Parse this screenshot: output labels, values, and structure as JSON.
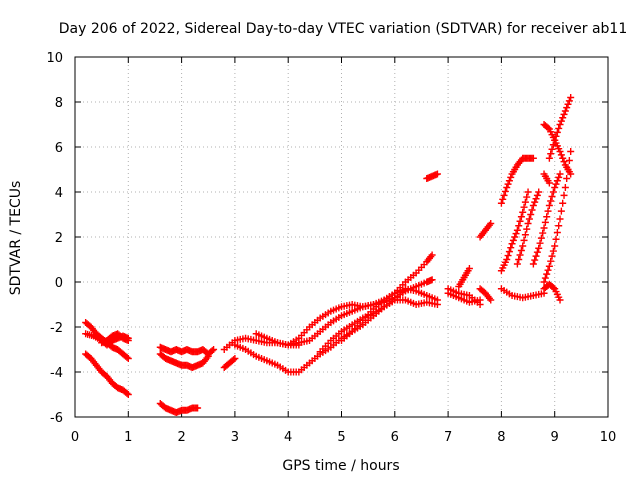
{
  "chart_data": {
    "type": "scatter",
    "title": "Day 206 of 2022, Sidereal Day-to-day VTEC variation (SDTVAR) for receiver ab11",
    "xlabel": "GPS time / hours",
    "ylabel": "SDTVAR / TECUs",
    "xlim": [
      0,
      10
    ],
    "ylim": [
      -6,
      10
    ],
    "xticks": [
      0,
      1,
      2,
      3,
      4,
      5,
      6,
      7,
      8,
      9,
      10
    ],
    "yticks": [
      -6,
      -4,
      -2,
      0,
      2,
      4,
      6,
      8,
      10
    ],
    "grid": true,
    "marker": "plus",
    "color": "#ff0000",
    "series": [
      {
        "x": [
          0.2,
          0.3,
          0.4,
          0.5,
          0.6,
          0.7,
          0.8,
          0.9,
          1.0
        ],
        "y": [
          -1.8,
          -2.0,
          -2.3,
          -2.5,
          -2.7,
          -2.9,
          -3.0,
          -3.2,
          -3.4
        ]
      },
      {
        "x": [
          0.2,
          0.35,
          0.5,
          0.6,
          0.7,
          0.8,
          0.9,
          1.0
        ],
        "y": [
          -2.3,
          -2.4,
          -2.6,
          -2.8,
          -2.6,
          -2.5,
          -2.4,
          -2.5
        ]
      },
      {
        "x": [
          0.5,
          0.6,
          0.7,
          0.8,
          0.9,
          1.0
        ],
        "y": [
          -2.7,
          -2.6,
          -2.4,
          -2.3,
          -2.5,
          -2.6
        ]
      },
      {
        "x": [
          0.2,
          0.3,
          0.4,
          0.5,
          0.6,
          0.7,
          0.8,
          0.9,
          1.0
        ],
        "y": [
          -3.2,
          -3.4,
          -3.7,
          -4.0,
          -4.2,
          -4.5,
          -4.7,
          -4.8,
          -5.0
        ]
      },
      {
        "x": [
          1.6,
          1.7,
          1.8,
          1.9,
          2.0,
          2.1,
          2.2,
          2.3
        ],
        "y": [
          -5.4,
          -5.6,
          -5.7,
          -5.8,
          -5.7,
          -5.7,
          -5.6,
          -5.6
        ]
      },
      {
        "x": [
          1.6,
          1.7,
          1.8,
          1.9,
          2.0,
          2.1,
          2.2,
          2.3,
          2.4,
          2.5,
          2.6
        ],
        "y": [
          -2.9,
          -3.0,
          -3.1,
          -3.0,
          -3.1,
          -3.0,
          -3.1,
          -3.1,
          -3.0,
          -3.2,
          -3.0
        ]
      },
      {
        "x": [
          1.6,
          1.7,
          1.8,
          1.9,
          2.0,
          2.1,
          2.2,
          2.3,
          2.4,
          2.5
        ],
        "y": [
          -3.2,
          -3.4,
          -3.5,
          -3.6,
          -3.7,
          -3.7,
          -3.8,
          -3.7,
          -3.6,
          -3.3
        ]
      },
      {
        "x": [
          2.8,
          2.9,
          3.0
        ],
        "y": [
          -3.8,
          -3.6,
          -3.4
        ]
      },
      {
        "x": [
          2.8,
          3.0,
          3.2,
          3.4,
          3.6,
          3.8,
          4.0,
          4.2
        ],
        "y": [
          -3.0,
          -2.6,
          -2.5,
          -2.6,
          -2.7,
          -2.7,
          -2.8,
          -2.8
        ]
      },
      {
        "x": [
          3.0,
          3.2,
          3.4,
          3.6,
          3.8,
          4.0,
          4.2,
          4.4,
          4.6,
          4.8,
          5.0,
          5.2,
          5.4,
          5.6,
          5.8,
          6.0,
          6.2
        ],
        "y": [
          -2.8,
          -3.0,
          -3.3,
          -3.5,
          -3.7,
          -4.0,
          -4.0,
          -3.6,
          -3.2,
          -2.9,
          -2.5,
          -2.2,
          -1.9,
          -1.5,
          -1.1,
          -0.8,
          -0.3
        ]
      },
      {
        "x": [
          3.4,
          3.6,
          3.8,
          4.0,
          4.2,
          4.4,
          4.6,
          4.8,
          5.0,
          5.2,
          5.4,
          5.6,
          5.8,
          6.0,
          6.2,
          6.4,
          6.6,
          6.7
        ],
        "y": [
          -2.3,
          -2.5,
          -2.7,
          -2.8,
          -2.7,
          -2.6,
          -2.2,
          -1.8,
          -1.5,
          -1.3,
          -1.1,
          -1.0,
          -0.8,
          -0.5,
          0.0,
          0.4,
          0.9,
          1.2
        ]
      },
      {
        "x": [
          4.0,
          4.2,
          4.4,
          4.6,
          4.8,
          5.0,
          5.2,
          5.4,
          5.6,
          5.8,
          6.0,
          6.2,
          6.4,
          6.6,
          6.7
        ],
        "y": [
          -2.8,
          -2.5,
          -2.0,
          -1.6,
          -1.3,
          -1.1,
          -1.0,
          -1.1,
          -1.0,
          -0.9,
          -0.7,
          -0.4,
          -0.2,
          0.0,
          0.1
        ]
      },
      {
        "x": [
          4.6,
          4.8,
          5.0,
          5.2,
          5.4,
          5.6,
          5.8,
          6.0,
          6.2,
          6.4,
          6.6,
          6.8
        ],
        "y": [
          -3.1,
          -2.6,
          -2.2,
          -1.9,
          -1.6,
          -1.4,
          -1.1,
          -0.8,
          -0.8,
          -1.0,
          -0.9,
          -1.0
        ]
      },
      {
        "x": [
          5.0,
          5.2,
          5.4,
          5.6,
          5.8,
          6.0,
          6.2,
          6.4,
          6.6,
          6.8
        ],
        "y": [
          -2.6,
          -2.2,
          -1.7,
          -1.2,
          -0.8,
          -0.5,
          -0.3,
          -0.4,
          -0.6,
          -0.8
        ]
      },
      {
        "x": [
          6.6,
          6.7,
          6.8
        ],
        "y": [
          4.6,
          4.7,
          4.8
        ]
      },
      {
        "x": [
          7.0,
          7.2,
          7.4,
          7.6
        ],
        "y": [
          -0.3,
          -0.5,
          -0.6,
          -1.0
        ]
      },
      {
        "x": [
          7.0,
          7.2,
          7.4,
          7.6
        ],
        "y": [
          -0.5,
          -0.7,
          -0.9,
          -0.8
        ]
      },
      {
        "x": [
          7.2,
          7.3,
          7.4
        ],
        "y": [
          -0.2,
          0.2,
          0.6
        ]
      },
      {
        "x": [
          7.6,
          7.7,
          7.8
        ],
        "y": [
          -0.3,
          -0.5,
          -0.8
        ]
      },
      {
        "x": [
          7.6,
          7.7,
          7.8
        ],
        "y": [
          2.0,
          2.3,
          2.6
        ]
      },
      {
        "x": [
          8.0,
          8.2,
          8.4,
          8.6,
          8.8
        ],
        "y": [
          -0.3,
          -0.6,
          -0.7,
          -0.6,
          -0.5
        ]
      },
      {
        "x": [
          8.0,
          8.1,
          8.2,
          8.3,
          8.4,
          8.5
        ],
        "y": [
          0.5,
          1.0,
          1.7,
          2.3,
          3.1,
          4.0
        ]
      },
      {
        "x": [
          8.0,
          8.1,
          8.2,
          8.3,
          8.4,
          8.5,
          8.6
        ],
        "y": [
          3.5,
          4.2,
          4.8,
          5.2,
          5.5,
          5.5,
          5.5
        ]
      },
      {
        "x": [
          8.3,
          8.4,
          8.5,
          8.6,
          8.7
        ],
        "y": [
          0.8,
          1.6,
          2.6,
          3.4,
          4.0
        ]
      },
      {
        "x": [
          8.6,
          8.7,
          8.8,
          8.9,
          9.0,
          9.1
        ],
        "y": [
          0.8,
          1.5,
          2.4,
          3.4,
          4.2,
          4.8
        ]
      },
      {
        "x": [
          8.8,
          8.9,
          9.0,
          9.1,
          9.2,
          9.3
        ],
        "y": [
          0.0,
          0.7,
          1.6,
          2.8,
          4.2,
          5.8
        ]
      },
      {
        "x": [
          8.8,
          8.9,
          9.0,
          9.1,
          9.2,
          9.3
        ],
        "y": [
          7.0,
          6.8,
          6.3,
          5.8,
          5.2,
          4.8
        ]
      },
      {
        "x": [
          8.9,
          9.0,
          9.1,
          9.2,
          9.3
        ],
        "y": [
          5.5,
          6.3,
          7.0,
          7.6,
          8.2
        ]
      },
      {
        "x": [
          8.8,
          8.9,
          9.0,
          9.1
        ],
        "y": [
          -0.3,
          -0.1,
          -0.3,
          -0.8
        ]
      },
      {
        "x": [
          8.8,
          8.9
        ],
        "y": [
          4.8,
          4.4
        ]
      }
    ]
  }
}
